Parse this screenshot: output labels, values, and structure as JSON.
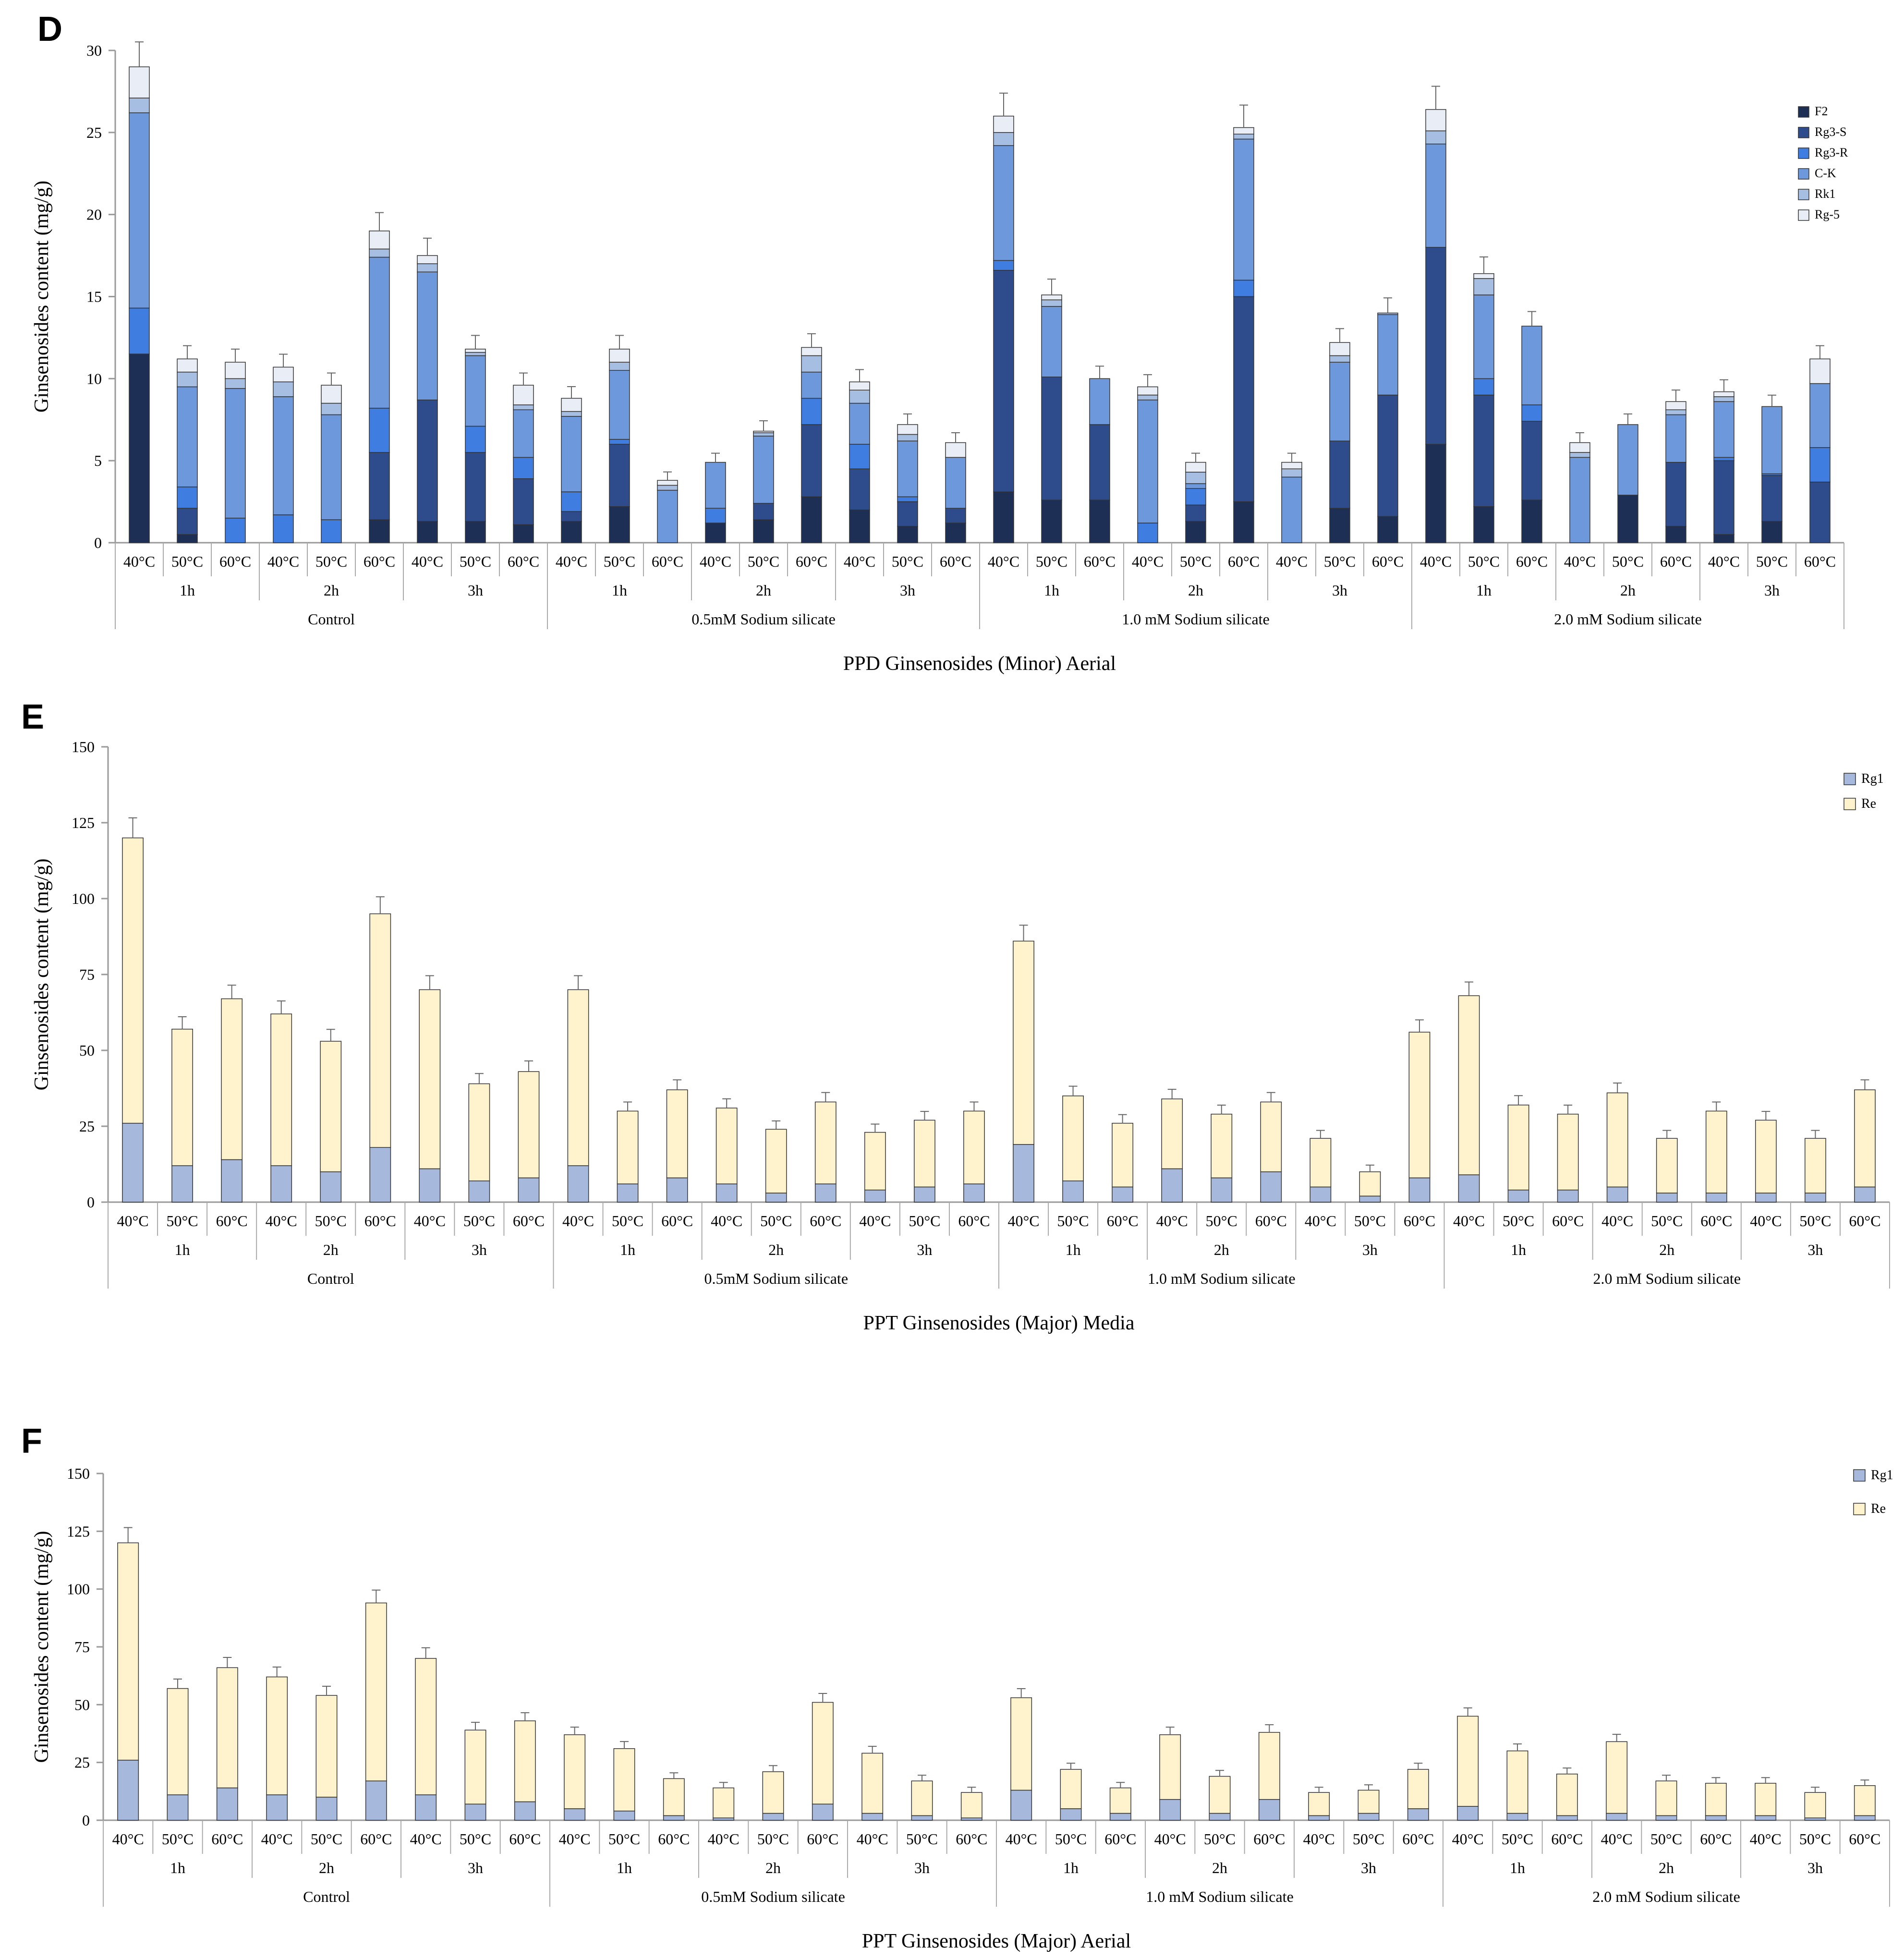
{
  "chart_data": [
    {
      "panel": "D",
      "type": "bar",
      "stacked": true,
      "title": "",
      "xlabel": "PPD Ginsenosides (Minor) Aerial",
      "ylabel": "Ginsenosides content (mg/g)",
      "ylim": [
        0,
        30
      ],
      "yticks": [
        0,
        5,
        10,
        15,
        20,
        25,
        30
      ],
      "legend_position": "top-right",
      "grid": false,
      "group_labels": [
        "Control",
        "0.5mM Sodium silicate",
        "1.0 mM Sodium silicate",
        "2.0 mM Sodium silicate"
      ],
      "time_labels": [
        "1h",
        "2h",
        "3h"
      ],
      "temp_labels": [
        "40°C",
        "50°C",
        "60°C"
      ],
      "series": [
        {
          "name": "F2",
          "color": "#1e2f55",
          "values": [
            11.5,
            0.5,
            0,
            0,
            0,
            1.4,
            1.3,
            1.3,
            1.1,
            1.3,
            2.2,
            0,
            1.2,
            1.4,
            2.8,
            2.0,
            1.0,
            1.2,
            3.1,
            2.6,
            2.6,
            0,
            1.3,
            2.5,
            0,
            2.1,
            1.6,
            6.0,
            2.2,
            2.6,
            0,
            2.9,
            1.0,
            0.5,
            1.3,
            0
          ]
        },
        {
          "name": "Rg3-S",
          "color": "#2e4c8c",
          "values": [
            0,
            1.6,
            0,
            0,
            0,
            4.1,
            7.4,
            4.2,
            2.8,
            0.6,
            3.8,
            0,
            0,
            1.0,
            4.4,
            2.5,
            1.5,
            0.9,
            13.5,
            7.5,
            4.6,
            0,
            1.0,
            12.5,
            0,
            4.1,
            7.4,
            12.0,
            6.8,
            4.8,
            0,
            0,
            3.9,
            4.5,
            2.8,
            3.7
          ]
        },
        {
          "name": "Rg3-R",
          "color": "#3f7de0",
          "values": [
            2.8,
            1.3,
            1.5,
            1.7,
            1.4,
            2.7,
            0,
            1.6,
            1.3,
            1.2,
            0.3,
            0,
            0.9,
            0,
            1.6,
            1.5,
            0.3,
            0,
            0.6,
            0,
            0,
            1.2,
            1.0,
            1.0,
            0,
            0,
            0,
            0,
            1.0,
            1.0,
            0,
            0,
            0,
            0.2,
            0.1,
            2.1
          ]
        },
        {
          "name": "C-K",
          "color": "#6e98dc",
          "values": [
            11.9,
            6.1,
            7.9,
            7.2,
            6.4,
            9.2,
            7.8,
            4.3,
            2.9,
            4.6,
            4.2,
            3.2,
            2.8,
            4.1,
            1.6,
            2.5,
            3.4,
            3.1,
            7.0,
            4.3,
            2.8,
            7.5,
            0.3,
            8.6,
            4.0,
            4.8,
            4.9,
            6.3,
            5.1,
            4.8,
            5.2,
            4.3,
            2.9,
            3.4,
            4.1,
            3.9
          ]
        },
        {
          "name": "Rk1",
          "color": "#a7bee3",
          "values": [
            0.9,
            0.9,
            0.6,
            0.9,
            0.7,
            0.5,
            0.5,
            0.2,
            0.3,
            0.3,
            0.5,
            0.3,
            0,
            0.2,
            1.0,
            0.8,
            0.4,
            0,
            0.8,
            0.4,
            0,
            0.3,
            0.7,
            0.3,
            0.5,
            0.4,
            0.1,
            0.8,
            1.0,
            0,
            0.3,
            0,
            0.3,
            0.3,
            0,
            0
          ]
        },
        {
          "name": "Rg-5",
          "color": "#e9edf5",
          "values": [
            1.9,
            0.8,
            1.0,
            0.9,
            1.1,
            1.1,
            0.5,
            0.2,
            1.2,
            0.8,
            0.8,
            0.3,
            0,
            0.1,
            0.5,
            0.5,
            0.6,
            0.9,
            1.0,
            0.3,
            0,
            0.5,
            0.6,
            0.4,
            0.4,
            0.8,
            0,
            1.3,
            0.3,
            0,
            0.6,
            0,
            0.5,
            0.3,
            0,
            1.5
          ]
        }
      ]
    },
    {
      "panel": "E",
      "type": "bar",
      "stacked": true,
      "title": "",
      "xlabel": "PPT Ginsenosides (Major) Media",
      "ylabel": "Ginsenosides content (mg/g)",
      "ylim": [
        0,
        150
      ],
      "yticks": [
        0,
        25,
        50,
        75,
        100,
        125,
        150
      ],
      "legend_position": "top-right",
      "grid": false,
      "group_labels": [
        "Control",
        "0.5mM Sodium silicate",
        "1.0 mM Sodium silicate",
        "2.0 mM Sodium silicate"
      ],
      "time_labels": [
        "1h",
        "2h",
        "3h"
      ],
      "temp_labels": [
        "40°C",
        "50°C",
        "60°C"
      ],
      "series": [
        {
          "name": "Rg1",
          "color": "#a6b8dc",
          "values": [
            26,
            12,
            14,
            12,
            10,
            18,
            11,
            7,
            8,
            12,
            6,
            8,
            6,
            3,
            6,
            4,
            5,
            6,
            19,
            7,
            5,
            11,
            8,
            10,
            5,
            2,
            8,
            9,
            4,
            4,
            5,
            3,
            3,
            3,
            3,
            5
          ]
        },
        {
          "name": "Re",
          "color": "#fef3cd",
          "values": [
            94,
            45,
            53,
            50,
            43,
            77,
            59,
            32,
            35,
            58,
            24,
            29,
            25,
            21,
            27,
            19,
            22,
            24,
            67,
            28,
            21,
            23,
            21,
            23,
            16,
            8,
            48,
            59,
            28,
            25,
            31,
            18,
            27,
            24,
            18,
            32
          ]
        }
      ]
    },
    {
      "panel": "F",
      "type": "bar",
      "stacked": true,
      "title": "",
      "xlabel": "PPT Ginsenosides (Major) Aerial",
      "ylabel": "Ginsenosides content (mg/g)",
      "ylim": [
        0,
        150
      ],
      "yticks": [
        0,
        25,
        50,
        75,
        100,
        125,
        150
      ],
      "legend_position": "top-right",
      "grid": false,
      "group_labels": [
        "Control",
        "0.5mM Sodium silicate",
        "1.0 mM Sodium silicate",
        "2.0 mM Sodium silicate"
      ],
      "time_labels": [
        "1h",
        "2h",
        "3h"
      ],
      "temp_labels": [
        "40°C",
        "50°C",
        "60°C"
      ],
      "series": [
        {
          "name": "Rg1",
          "color": "#a6b8dc",
          "values": [
            26,
            11,
            14,
            11,
            10,
            17,
            11,
            7,
            8,
            5,
            4,
            2,
            1,
            3,
            7,
            3,
            2,
            1,
            13,
            5,
            3,
            9,
            3,
            9,
            2,
            3,
            5,
            6,
            3,
            2,
            3,
            2,
            2,
            2,
            1,
            2
          ]
        },
        {
          "name": "Re",
          "color": "#fef3cd",
          "values": [
            94,
            46,
            52,
            51,
            44,
            77,
            59,
            32,
            35,
            32,
            27,
            16,
            13,
            18,
            44,
            26,
            15,
            11,
            40,
            17,
            11,
            28,
            16,
            29,
            10,
            10,
            17,
            39,
            27,
            18,
            31,
            15,
            14,
            14,
            11,
            13
          ]
        }
      ]
    }
  ]
}
